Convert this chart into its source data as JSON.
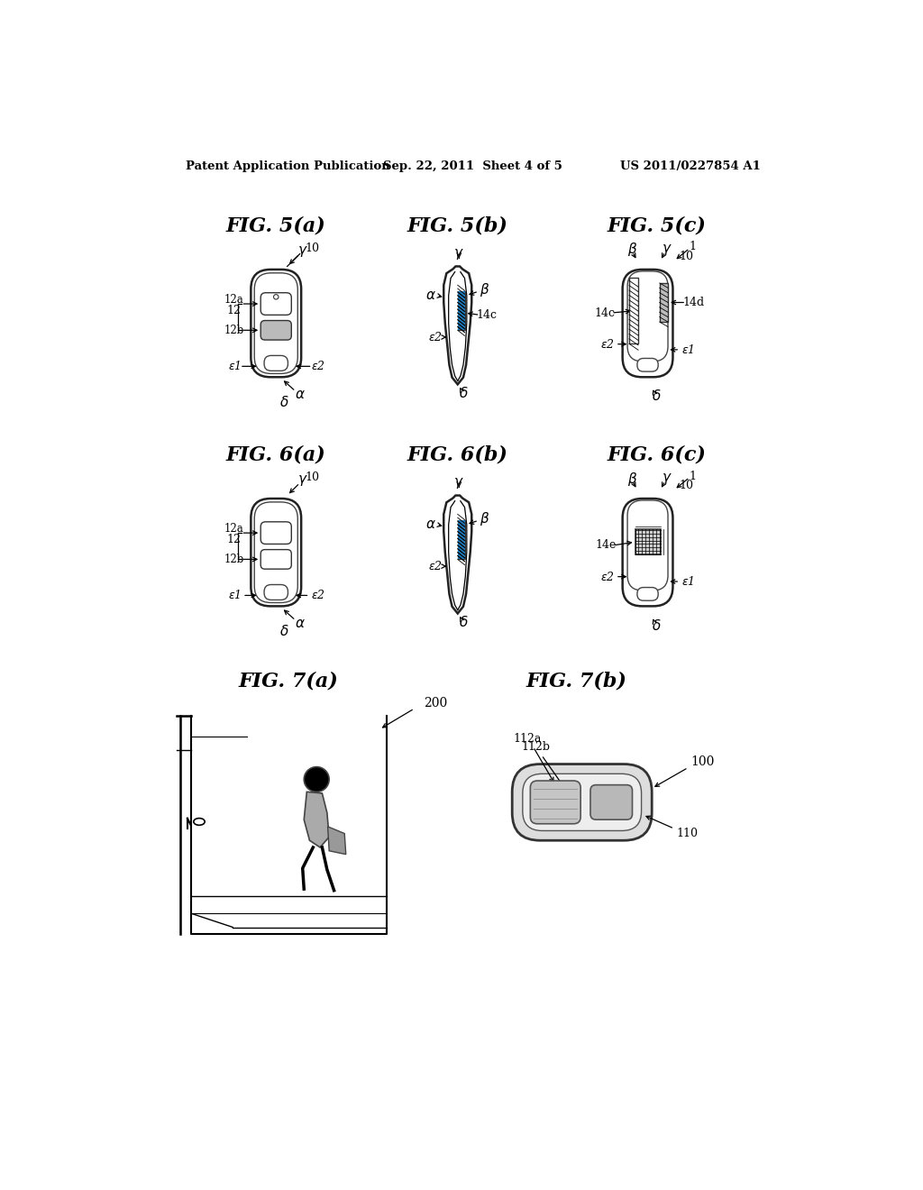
{
  "background_color": "#ffffff",
  "header_left": "Patent Application Publication",
  "header_center": "Sep. 22, 2011  Sheet 4 of 5",
  "header_right": "US 2011/0227854 A1"
}
